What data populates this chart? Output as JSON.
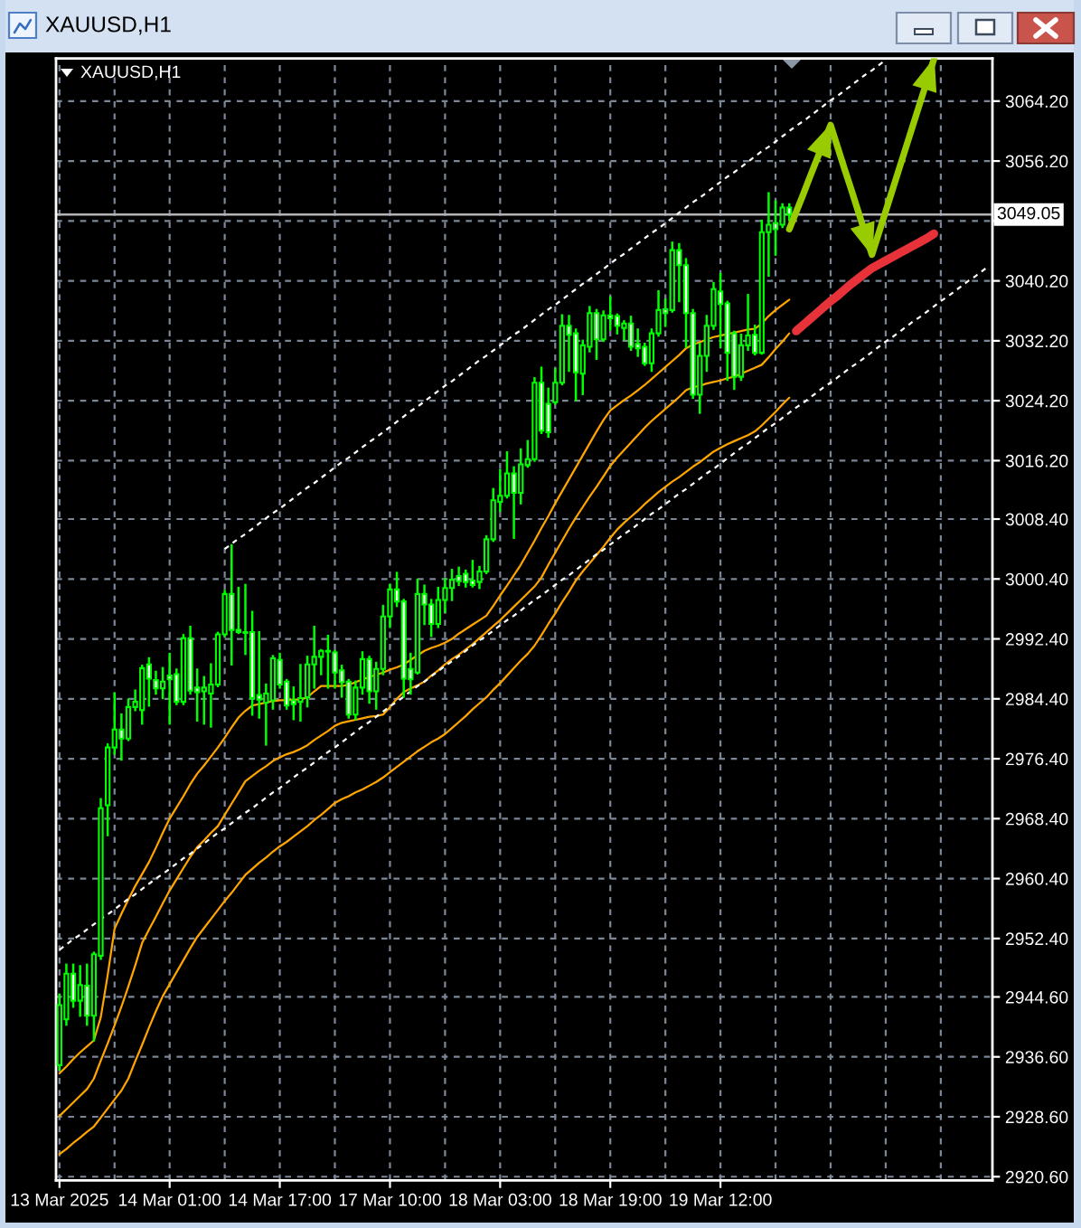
{
  "chart_data": {
    "type": "candlestick",
    "title": "XAUUSD,H1",
    "subtitle": "XAUUSD,H1",
    "color": "#00ff00",
    "categories": [
      "13 Mar 2025",
      null,
      null,
      null,
      null,
      null,
      null,
      null,
      null,
      null,
      null,
      null,
      null,
      null,
      null,
      null,
      "14 Mar 01:00",
      null,
      null,
      null,
      null,
      null,
      null,
      null,
      null,
      null,
      null,
      null,
      null,
      null,
      null,
      null,
      "14 Mar 17:00",
      null,
      null,
      null,
      null,
      null,
      null,
      null,
      null,
      null,
      null,
      null,
      null,
      null,
      null,
      null,
      "17 Mar 10:00",
      null,
      null,
      null,
      null,
      null,
      null,
      null,
      null,
      null,
      null,
      null,
      null,
      null,
      null,
      null,
      "18 Mar 03:00",
      null,
      null,
      null,
      null,
      null,
      null,
      null,
      null,
      null,
      null,
      null,
      null,
      null,
      null,
      null,
      "18 Mar 19:00",
      null,
      null,
      null,
      null,
      null,
      null,
      null,
      null,
      null,
      null,
      null,
      null,
      null,
      null,
      null,
      "19 Mar 12:00",
      null,
      null,
      null,
      null,
      null,
      null,
      null,
      null,
      null,
      null,
      null,
      null,
      null,
      null,
      null,
      null,
      null,
      null,
      null,
      null,
      null,
      null,
      null,
      null,
      null,
      null,
      null,
      null,
      null,
      null,
      null,
      null,
      null,
      null,
      null,
      null,
      null,
      null,
      null
    ],
    "ohlc": [
      [
        2935.5,
        2944.9,
        2934.9,
        2943.5
      ],
      [
        2941.6,
        2948.9,
        2940.9,
        2947.7
      ],
      [
        2947.7,
        2948.9,
        2943.3,
        2944.1
      ],
      [
        2944.1,
        2948.7,
        2942.1,
        2946.2
      ],
      [
        2946.1,
        2948.9,
        2940.9,
        2942.1
      ],
      [
        2942.1,
        2950.5,
        2938.8,
        2950.3
      ],
      [
        2950.1,
        2971.0,
        2949.7,
        2969.8
      ],
      [
        2970.2,
        2978.3,
        2966.2,
        2977.9
      ],
      [
        2977.9,
        2985.1,
        2977.1,
        2980.3
      ],
      [
        2980.3,
        2982.3,
        2976.3,
        2979.1
      ],
      [
        2979.1,
        2984.3,
        2978.9,
        2983.3
      ],
      [
        2983.3,
        2985.5,
        2982.9,
        2984.0
      ],
      [
        2982.9,
        2988.8,
        2981.1,
        2988.5
      ],
      [
        2989.0,
        2989.8,
        2983.5,
        2987.1
      ],
      [
        2986.9,
        2988.0,
        2985.1,
        2985.8
      ],
      [
        2985.8,
        2988.5,
        2984.5,
        2986.7
      ],
      [
        2987.5,
        2990.4,
        2981.1,
        2987.0
      ],
      [
        2987.7,
        2988.3,
        2983.7,
        2984.0
      ],
      [
        2984.0,
        2992.9,
        2983.7,
        2992.5
      ],
      [
        2992.5,
        2994.0,
        2985.1,
        2985.5
      ],
      [
        2985.9,
        2988.3,
        2981.5,
        2985.3
      ],
      [
        2985.4,
        2987.3,
        2981.1,
        2985.9
      ],
      [
        2985.1,
        2989.0,
        2980.7,
        2986.3
      ],
      [
        2986.3,
        2993.2,
        2986.1,
        2993.0
      ],
      [
        2993.0,
        2998.8,
        2992.8,
        2998.4
      ],
      [
        2998.4,
        3004.9,
        2989.0,
        2993.6
      ],
      [
        2993.6,
        2999.2,
        2993.2,
        2993.3
      ],
      [
        2993.3,
        2999.6,
        2990.4,
        2993.2
      ],
      [
        2993.3,
        2996.0,
        2982.3,
        2984.5
      ],
      [
        2984.9,
        2993.3,
        2981.9,
        2984.3
      ],
      [
        2983.9,
        2986.3,
        2978.3,
        2985.1
      ],
      [
        2984.2,
        2990.1,
        2983.1,
        2989.8
      ],
      [
        2989.6,
        2990.4,
        2985.9,
        2986.3
      ],
      [
        2986.7,
        2986.9,
        2983.1,
        2983.5
      ],
      [
        2984.2,
        2985.9,
        2981.7,
        2983.7
      ],
      [
        2984.0,
        2988.9,
        2981.5,
        2984.5
      ],
      [
        2984.6,
        2990.0,
        2983.4,
        2989.0
      ],
      [
        2989.0,
        2994.0,
        2985.9,
        2990.0
      ],
      [
        2990.0,
        2990.9,
        2987.7,
        2990.8
      ],
      [
        2990.7,
        2992.8,
        2985.9,
        2990.8
      ],
      [
        2990.6,
        2990.8,
        2985.9,
        2987.9
      ],
      [
        2988.2,
        2988.8,
        2984.7,
        2986.6
      ],
      [
        2986.7,
        2986.9,
        2981.9,
        2982.3
      ],
      [
        2982.3,
        2986.7,
        2981.7,
        2985.9
      ],
      [
        2985.9,
        2990.6,
        2985.1,
        2989.7
      ],
      [
        2989.7,
        2990.0,
        2983.9,
        2985.4
      ],
      [
        2985.4,
        2989.2,
        2983.1,
        2988.4
      ],
      [
        2988.4,
        2996.8,
        2987.7,
        2995.4
      ],
      [
        2995.4,
        2999.6,
        2994.0,
        2999.0
      ],
      [
        2999.0,
        3001.2,
        2996.8,
        2997.4
      ],
      [
        2997.4,
        2997.6,
        2984.7,
        2987.1
      ],
      [
        2988.4,
        2990.4,
        2985.1,
        2987.0
      ],
      [
        2987.9,
        3000.3,
        2987.8,
        2998.4
      ],
      [
        2998.4,
        2999.5,
        2994.4,
        2997.0
      ],
      [
        2997.0,
        2997.6,
        2992.8,
        2994.4
      ],
      [
        2994.4,
        2999.2,
        2994.0,
        2997.6
      ],
      [
        2997.6,
        3000.4,
        2996.0,
        2999.2
      ],
      [
        2999.2,
        3001.6,
        2997.6,
        3000.3
      ],
      [
        3000.8,
        3001.9,
        2999.6,
        3000.1
      ],
      [
        3001.1,
        3001.5,
        2999.4,
        3000.0
      ],
      [
        3000.2,
        3002.8,
        2999.4,
        2999.6
      ],
      [
        3000.0,
        3002.0,
        2999.2,
        3001.4
      ],
      [
        3001.4,
        3006.1,
        3001.2,
        3005.7
      ],
      [
        3005.7,
        3012.4,
        3005.5,
        3010.9
      ],
      [
        3010.7,
        3014.9,
        3009.5,
        3011.5
      ],
      [
        3011.5,
        3017.3,
        3011.3,
        3014.5
      ],
      [
        3014.5,
        3015.3,
        3005.9,
        3011.9
      ],
      [
        3011.9,
        3017.7,
        3010.5,
        3015.7
      ],
      [
        3015.6,
        3018.8,
        3015.4,
        3016.4
      ],
      [
        3016.4,
        3027.2,
        3016.2,
        3026.6
      ],
      [
        3026.6,
        3028.6,
        3019.9,
        3020.2
      ],
      [
        3023.8,
        3025.8,
        3019.4,
        3020.0
      ],
      [
        3024.0,
        3028.4,
        3023.8,
        3026.6
      ],
      [
        3026.6,
        3035.6,
        3026.4,
        3034.2
      ],
      [
        3034.2,
        3035.5,
        3028.2,
        3033.0
      ],
      [
        3033.2,
        3033.7,
        3024.3,
        3028.0
      ],
      [
        3027.8,
        3032.2,
        3025.1,
        3031.6
      ],
      [
        3031.4,
        3036.7,
        3030.8,
        3035.9
      ],
      [
        3035.9,
        3036.3,
        3029.8,
        3032.4
      ],
      [
        3032.4,
        3036.1,
        3032.2,
        3035.6
      ],
      [
        3035.6,
        3038.0,
        3033.7,
        3035.2
      ],
      [
        3035.5,
        3035.7,
        3033.2,
        3034.2
      ],
      [
        3033.9,
        3034.8,
        3032.4,
        3034.5
      ],
      [
        3034.5,
        3035.4,
        3031.0,
        3031.4
      ],
      [
        3031.8,
        3033.7,
        3030.2,
        3031.2
      ],
      [
        3031.4,
        3031.8,
        3029.0,
        3029.2
      ],
      [
        3029.2,
        3033.7,
        3028.2,
        3033.2
      ],
      [
        3033.2,
        3038.8,
        3032.9,
        3036.3
      ],
      [
        3036.4,
        3037.7,
        3034.2,
        3035.9
      ],
      [
        3036.3,
        3045.3,
        3036.1,
        3044.3
      ],
      [
        3044.3,
        3045.1,
        3037.5,
        3042.3
      ],
      [
        3042.3,
        3043.1,
        3031.4,
        3035.9
      ],
      [
        3035.9,
        3036.3,
        3024.6,
        3025.0
      ],
      [
        3025.0,
        3031.8,
        3022.6,
        3030.2
      ],
      [
        3030.2,
        3035.5,
        3028.2,
        3034.2
      ],
      [
        3034.2,
        3039.9,
        3033.8,
        3039.1
      ],
      [
        3038.8,
        3041.1,
        3031.4,
        3037.1
      ],
      [
        3037.2,
        3037.4,
        3027.0,
        3030.6
      ],
      [
        3033.2,
        3033.4,
        3025.8,
        3027.4
      ],
      [
        3027.4,
        3033.0,
        3027.0,
        3031.6
      ],
      [
        3031.6,
        3038.3,
        3031.0,
        3032.9
      ],
      [
        3033.0,
        3034.2,
        3030.4,
        3030.6
      ],
      [
        3030.6,
        3048.2,
        3030.5,
        3046.7
      ],
      [
        3046.7,
        3051.9,
        3040.9,
        3047.7
      ],
      [
        3047.9,
        3050.8,
        3043.7,
        3047.1
      ],
      [
        3047.7,
        3050.4,
        3047.4,
        3050.0
      ],
      [
        3050.0,
        3050.4,
        3048.3,
        3049.05
      ],
      null,
      null,
      null,
      null,
      null,
      null,
      null,
      null,
      null,
      null,
      null,
      null,
      null,
      null,
      null,
      null,
      null,
      null,
      null,
      null,
      null,
      null,
      null,
      null,
      null,
      null,
      null,
      null,
      null
    ],
    "colors": [
      "#000000",
      "#000000",
      "#ffffff",
      "#000000",
      "#ffffff",
      "#000000",
      "#000000",
      "#000000",
      "#000000",
      "#ffffff",
      "#000000",
      "#000000",
      "#000000",
      "#ffffff",
      "#ffffff",
      "#000000",
      "#ffffff",
      "#ffffff",
      "#000000",
      "#ffffff",
      "#ffffff",
      "#000000",
      "#000000",
      "#000000",
      "#000000",
      "#ffffff",
      "#ffffff",
      "#ffffff",
      "#ffffff",
      "#ffffff",
      "#000000",
      "#000000",
      "#ffffff",
      "#ffffff",
      "#ffffff",
      "#000000",
      "#000000",
      "#000000",
      "#000000",
      "#000000",
      "#ffffff",
      "#ffffff",
      "#ffffff",
      "#000000",
      "#000000",
      "#ffffff",
      "#000000",
      "#000000",
      "#000000",
      "#ffffff",
      "#ffffff",
      "#ffffff",
      "#000000",
      "#ffffff",
      "#ffffff",
      "#000000",
      "#000000",
      "#000000",
      "#ffffff",
      "#ffffff",
      "#ffffff",
      "#000000",
      "#000000",
      "#000000",
      "#000000",
      "#000000",
      "#ffffff",
      "#000000",
      "#000000",
      "#000000",
      "#ffffff",
      "#ffffff",
      "#000000",
      "#000000",
      "#ffffff",
      "#ffffff",
      "#000000",
      "#000000",
      "#ffffff",
      "#000000",
      "#ffffff",
      "#ffffff",
      "#000000",
      "#ffffff",
      "#ffffff",
      "#ffffff",
      "#000000",
      "#000000",
      "#ffffff",
      "#000000",
      "#ffffff",
      "#ffffff",
      "#ffffff",
      "#000000",
      "#000000",
      "#000000",
      "#ffffff",
      "#ffffff",
      "#ffffff",
      "#000000",
      "#000000",
      "#ffffff",
      "#000000",
      "#000000",
      "#ffffff",
      "#000000",
      "#ffffff",
      null,
      null,
      null,
      null,
      null,
      null,
      null,
      null,
      null,
      null,
      null,
      null,
      null,
      null,
      null,
      null,
      null,
      null,
      null,
      null,
      null,
      null,
      null,
      null,
      null,
      null,
      null,
      null,
      null
    ],
    "series": [
      {
        "type": "line",
        "color": "#ffa500",
        "values": [
          2934.4,
          2935.3,
          2936.3,
          2937.2,
          2938.0,
          2938.8,
          2941.9,
          2947.5,
          2953.7,
          2955.7,
          2957.6,
          2959.4,
          2961.0,
          2962.6,
          2964.5,
          2966.5,
          2968.4,
          2969.9,
          2971.4,
          2973.0,
          2974.4,
          2975.5,
          2976.7,
          2977.9,
          2979.2,
          2980.6,
          2981.9,
          2982.8,
          2983.5,
          2983.7,
          2983.9,
          2984.1,
          2984.2,
          2984.2,
          2984.3,
          2984.3,
          2984.6,
          2985.4,
          2986.1,
          2986.1,
          2986.1,
          2986.1,
          2986.3,
          2986.6,
          2987.0,
          2987.3,
          2987.6,
          2987.9,
          2988.3,
          2988.6,
          2989.0,
          2989.6,
          2990.2,
          2990.8,
          2991.2,
          2991.5,
          2991.9,
          2992.4,
          2993.1,
          2993.7,
          2994.3,
          2994.9,
          2995.5,
          2996.8,
          2998.2,
          2999.5,
          3000.9,
          3002.3,
          3003.9,
          3005.5,
          3007.2,
          3008.8,
          3010.5,
          3012.1,
          3013.7,
          3015.3,
          3016.9,
          3018.5,
          3020.1,
          3021.6,
          3022.9,
          3023.6,
          3024.3,
          3024.9,
          3025.6,
          3026.3,
          3027.1,
          3027.9,
          3028.7,
          3029.5,
          3030.3,
          3031.2,
          3031.7,
          3032.0,
          3032.4,
          3032.7,
          3032.9,
          3033.1,
          3033.3,
          3033.5,
          3033.7,
          3033.8,
          3034.5,
          3035.5,
          3036.3,
          3037.0,
          3037.7,
          null,
          null,
          null,
          null,
          null,
          null,
          null,
          null,
          null,
          null,
          null,
          null,
          null,
          null,
          null,
          null,
          null,
          null,
          null,
          null,
          null,
          null,
          null,
          null,
          null,
          null,
          null,
          null,
          null
        ]
      },
      {
        "type": "line",
        "color": "#ffa500",
        "values": [
          2928.7,
          2929.6,
          2930.5,
          2931.4,
          2932.3,
          2933.7,
          2936.1,
          2938.4,
          2940.8,
          2943.3,
          2946.0,
          2948.8,
          2951.8,
          2953.6,
          2955.3,
          2957.1,
          2958.8,
          2960.3,
          2961.8,
          2963.3,
          2964.6,
          2965.5,
          2966.5,
          2967.4,
          2968.9,
          2970.4,
          2971.9,
          2973.4,
          2974.1,
          2974.8,
          2975.4,
          2976.1,
          2976.6,
          2977.0,
          2977.3,
          2977.7,
          2978.2,
          2978.9,
          2979.5,
          2980.1,
          2980.8,
          2981.2,
          2981.4,
          2981.6,
          2981.8,
          2982.0,
          2982.1,
          2982.3,
          2983.3,
          2984.4,
          2985.3,
          2985.8,
          2986.2,
          2986.7,
          2987.5,
          2988.2,
          2989.0,
          2989.7,
          2990.3,
          2991.0,
          2991.7,
          2992.5,
          2993.3,
          2994.1,
          2994.9,
          2995.8,
          2996.7,
          2997.6,
          2998.5,
          2999.4,
          3000.6,
          3002.3,
          3003.9,
          3005.5,
          3007.1,
          3008.6,
          3010.0,
          3011.4,
          3012.7,
          3014.1,
          3015.5,
          3016.6,
          3017.6,
          3018.6,
          3019.6,
          3020.6,
          3021.5,
          3022.3,
          3023.1,
          3023.9,
          3024.7,
          3025.6,
          3026.0,
          3026.2,
          3026.5,
          3026.7,
          3026.9,
          3027.2,
          3027.4,
          3027.8,
          3028.2,
          3028.6,
          3029.0,
          3030.0,
          3031.1,
          3032.1,
          3033.2,
          null,
          null,
          null,
          null,
          null,
          null,
          null,
          null,
          null,
          null,
          null,
          null,
          null,
          null,
          null,
          null,
          null,
          null,
          null,
          null,
          null,
          null,
          null,
          null,
          null,
          null,
          null,
          null,
          null
        ]
      },
      {
        "type": "line",
        "color": "#ffa500",
        "values": [
          2923.6,
          2924.3,
          2925.1,
          2925.8,
          2926.6,
          2927.3,
          2928.5,
          2929.7,
          2930.9,
          2932.1,
          2933.7,
          2936.0,
          2938.2,
          2940.5,
          2942.7,
          2944.7,
          2946.3,
          2947.9,
          2949.5,
          2951.1,
          2952.6,
          2953.8,
          2955.0,
          2956.2,
          2957.4,
          2958.5,
          2959.7,
          2960.9,
          2961.7,
          2962.5,
          2963.2,
          2964.0,
          2964.7,
          2965.3,
          2966.0,
          2966.7,
          2967.4,
          2968.2,
          2968.9,
          2969.7,
          2970.5,
          2971.0,
          2971.4,
          2971.9,
          2972.3,
          2972.8,
          2973.3,
          2973.9,
          2974.6,
          2975.3,
          2976.0,
          2976.7,
          2977.4,
          2978.0,
          2978.6,
          2979.1,
          2979.7,
          2980.5,
          2981.3,
          2982.1,
          2983.0,
          2983.8,
          2984.6,
          2985.6,
          2986.5,
          2987.5,
          2988.5,
          2989.5,
          2990.4,
          2991.5,
          2992.9,
          2994.4,
          2995.8,
          2997.3,
          2998.7,
          3000.2,
          3001.4,
          3002.5,
          3003.6,
          3004.7,
          3005.9,
          3007.0,
          3007.9,
          3008.7,
          3009.5,
          3010.4,
          3011.2,
          3012.0,
          3012.7,
          3013.4,
          3014.0,
          3014.7,
          3015.4,
          3016.0,
          3016.7,
          3017.4,
          3017.9,
          3018.4,
          3018.8,
          3019.2,
          3019.6,
          3020.1,
          3020.9,
          3021.8,
          3022.7,
          3023.7,
          3024.6,
          null,
          null,
          null,
          null,
          null,
          null,
          null,
          null,
          null,
          null,
          null,
          null,
          null,
          null,
          null,
          null,
          null,
          null,
          null,
          null,
          null,
          null,
          null,
          null,
          null,
          null,
          null,
          null,
          null
        ]
      },
      {
        "type": "line",
        "color": "#ffffff",
        "line_style": "dashed",
        "values": [
          2950.9,
          2951.6,
          2952.3,
          2952.9,
          2953.6,
          2954.3,
          2955.0,
          2955.6,
          2956.3,
          2957.0,
          2957.7,
          2958.3,
          2959.0,
          2959.7,
          2960.4,
          2961.0,
          2961.7,
          2962.4,
          2963.1,
          2963.7,
          2964.4,
          2965.1,
          2965.8,
          2966.5,
          2967.1,
          2967.8,
          2968.5,
          2969.2,
          2969.8,
          2970.5,
          2971.2,
          2971.9,
          2972.5,
          2973.2,
          2973.9,
          2974.6,
          2975.2,
          2975.9,
          2976.6,
          2977.3,
          2977.9,
          2978.6,
          2979.3,
          2980.0,
          2980.7,
          2981.3,
          2982.0,
          2982.7,
          2983.4,
          2984.0,
          2984.7,
          2985.4,
          2986.1,
          2986.7,
          2987.4,
          2988.1,
          2988.8,
          2989.4,
          2990.1,
          2990.8,
          2991.5,
          2992.2,
          2992.8,
          2993.5,
          2994.2,
          2994.9,
          2995.5,
          2996.2,
          2996.9,
          2997.6,
          2998.2,
          2998.9,
          2999.6,
          3000.3,
          3000.9,
          3001.6,
          3002.3,
          3003.0,
          3003.7,
          3004.3,
          3005.0,
          3005.7,
          3006.4,
          3007.0,
          3007.7,
          3008.4,
          3009.1,
          3009.7,
          3010.4,
          3011.1,
          3011.8,
          3012.4,
          3013.1,
          3013.8,
          3014.5,
          3015.1,
          3015.8,
          3016.5,
          3017.2,
          3017.9,
          3018.5,
          3019.2,
          3019.9,
          3020.6,
          3021.2,
          3021.9,
          3022.6,
          3023.3,
          3023.9,
          3024.6,
          3025.3,
          3026.0,
          3026.6,
          3027.3,
          3028.0,
          3028.7,
          3029.3,
          3030.0,
          3030.7,
          3031.4,
          3032.1,
          3032.7,
          3033.4,
          3034.1,
          3034.8,
          3035.4,
          3036.1,
          3036.8,
          3037.5,
          3038.1,
          3038.8,
          3039.5,
          3040.2,
          3040.8,
          3041.5,
          3042.2
        ]
      },
      {
        "type": "line",
        "color": "#ffffff",
        "line_style": "dashed",
        "values": [
          null,
          null,
          null,
          null,
          null,
          null,
          null,
          null,
          null,
          null,
          null,
          null,
          null,
          null,
          null,
          null,
          null,
          null,
          null,
          null,
          null,
          null,
          null,
          null,
          3004.4,
          3005.1,
          3005.8,
          3006.4,
          3007.1,
          3007.8,
          3008.5,
          3009.2,
          3009.8,
          3010.5,
          3011.2,
          3011.9,
          3012.6,
          3013.2,
          3013.9,
          3014.6,
          3015.3,
          3016.0,
          3016.6,
          3017.3,
          3018.0,
          3018.7,
          3019.3,
          3020.0,
          3020.7,
          3021.4,
          3022.1,
          3022.8,
          3023.4,
          3024.1,
          3024.8,
          3025.5,
          3026.2,
          3026.8,
          3027.5,
          3028.2,
          3028.9,
          3029.6,
          3030.2,
          3030.9,
          3031.6,
          3032.3,
          3033.0,
          3033.6,
          3034.3,
          3035.0,
          3035.7,
          3036.4,
          3037.0,
          3037.7,
          3038.4,
          3039.1,
          3039.8,
          3040.4,
          3041.1,
          3041.8,
          3042.5,
          3043.2,
          3043.8,
          3044.5,
          3045.2,
          3045.9,
          3046.6,
          3047.2,
          3047.9,
          3048.6,
          3049.3,
          3050.0,
          3050.7,
          3051.3,
          3052.0,
          3052.7,
          3053.4,
          3054.1,
          3054.7,
          3055.4,
          3056.1,
          3056.8,
          3057.5,
          3058.1,
          3058.8,
          3059.5,
          3060.2,
          3060.9,
          3061.5,
          3062.2,
          3062.9,
          3063.6,
          3064.3,
          3064.9,
          3065.6,
          3066.3,
          3067.0,
          3067.7,
          3068.3,
          3069.0,
          3069.7,
          null,
          null,
          null,
          null,
          null,
          null,
          null,
          null,
          null,
          null,
          null,
          null,
          null,
          null,
          null
        ]
      },
      {
        "type": "line",
        "color": "#e8323a",
        "values": [
          null,
          null,
          null,
          null,
          null,
          null,
          null,
          null,
          null,
          null,
          null,
          null,
          null,
          null,
          null,
          null,
          null,
          null,
          null,
          null,
          null,
          null,
          null,
          null,
          null,
          null,
          null,
          null,
          null,
          null,
          null,
          null,
          null,
          null,
          null,
          null,
          null,
          null,
          null,
          null,
          null,
          null,
          null,
          null,
          null,
          null,
          null,
          null,
          null,
          null,
          null,
          null,
          null,
          null,
          null,
          null,
          null,
          null,
          null,
          null,
          null,
          null,
          null,
          null,
          null,
          null,
          null,
          null,
          null,
          null,
          null,
          null,
          null,
          null,
          null,
          null,
          null,
          null,
          null,
          null,
          null,
          null,
          null,
          null,
          null,
          null,
          null,
          null,
          null,
          null,
          null,
          null,
          null,
          null,
          null,
          null,
          null,
          null,
          null,
          null,
          null,
          null,
          null,
          null,
          null,
          null,
          null,
          3033.5,
          3034.3,
          3035.1,
          3035.9,
          3036.7,
          3037.5,
          3038.2,
          3039.0,
          3039.8,
          3040.5,
          3041.2,
          3041.9,
          3042.4,
          3042.9,
          3043.4,
          3043.9,
          3044.4,
          3044.9,
          3045.4,
          3045.9,
          3046.5,
          null,
          null,
          null,
          null,
          null,
          null,
          null,
          null
        ]
      },
      {
        "type": "line",
        "color": "#99cc00",
        "values": [
          null,
          null,
          null,
          null,
          null,
          null,
          null,
          null,
          null,
          null,
          null,
          null,
          null,
          null,
          null,
          null,
          null,
          null,
          null,
          null,
          null,
          null,
          null,
          null,
          null,
          null,
          null,
          null,
          null,
          null,
          null,
          null,
          null,
          null,
          null,
          null,
          null,
          null,
          null,
          null,
          null,
          null,
          null,
          null,
          null,
          null,
          null,
          null,
          null,
          null,
          null,
          null,
          null,
          null,
          null,
          null,
          null,
          null,
          null,
          null,
          null,
          null,
          null,
          null,
          null,
          null,
          null,
          null,
          null,
          null,
          null,
          null,
          null,
          null,
          null,
          null,
          null,
          null,
          null,
          null,
          null,
          null,
          null,
          null,
          null,
          null,
          null,
          null,
          null,
          null,
          null,
          null,
          null,
          null,
          null,
          null,
          null,
          null,
          null,
          null,
          null,
          null,
          null,
          null,
          null,
          null,
          3047.1,
          3049.4,
          3051.7,
          3054.1,
          3056.4,
          3058.7,
          3061.0,
          3058.1,
          3055.2,
          3052.4,
          3049.5,
          3046.6,
          3043.7,
          3046.6,
          3049.5,
          3052.4,
          3055.3,
          3058.2,
          3061.1,
          3064.0,
          3066.9,
          3069.8,
          null,
          null,
          null,
          null,
          null,
          null,
          null,
          null
        ]
      }
    ],
    "ref_lines": [
      {
        "axis": "y",
        "value": 3049.05,
        "label": "3049.05",
        "color": "#b4b4b4"
      }
    ],
    "ylim": [
      2920.1,
      3069.9
    ],
    "yticks": [
      {
        "value": 2920.6,
        "label": "2920.60"
      },
      {
        "value": 2928.6,
        "label": "2928.60"
      },
      {
        "value": 2936.6,
        "label": "2936.60"
      },
      {
        "value": 2944.6,
        "label": "2944.60"
      },
      {
        "value": 2952.4,
        "label": "2952.40"
      },
      {
        "value": 2960.4,
        "label": "2960.40"
      },
      {
        "value": 2968.4,
        "label": "2968.40"
      },
      {
        "value": 2976.4,
        "label": "2976.40"
      },
      {
        "value": 2984.4,
        "label": "2984.40"
      },
      {
        "value": 2992.4,
        "label": "2992.40"
      },
      {
        "value": 3000.4,
        "label": "3000.40"
      },
      {
        "value": 3008.4,
        "label": "3008.40"
      },
      {
        "value": 3016.2,
        "label": "3016.20"
      },
      {
        "value": 3024.2,
        "label": "3024.20"
      },
      {
        "value": 3032.2,
        "label": "3032.20"
      },
      {
        "value": 3040.2,
        "label": "3040.20"
      },
      {
        "value": 3048.2,
        "label": null
      },
      {
        "value": 3056.2,
        "label": "3056.20"
      },
      {
        "value": 3064.2,
        "label": "3064.20"
      }
    ],
    "grid": true
  }
}
